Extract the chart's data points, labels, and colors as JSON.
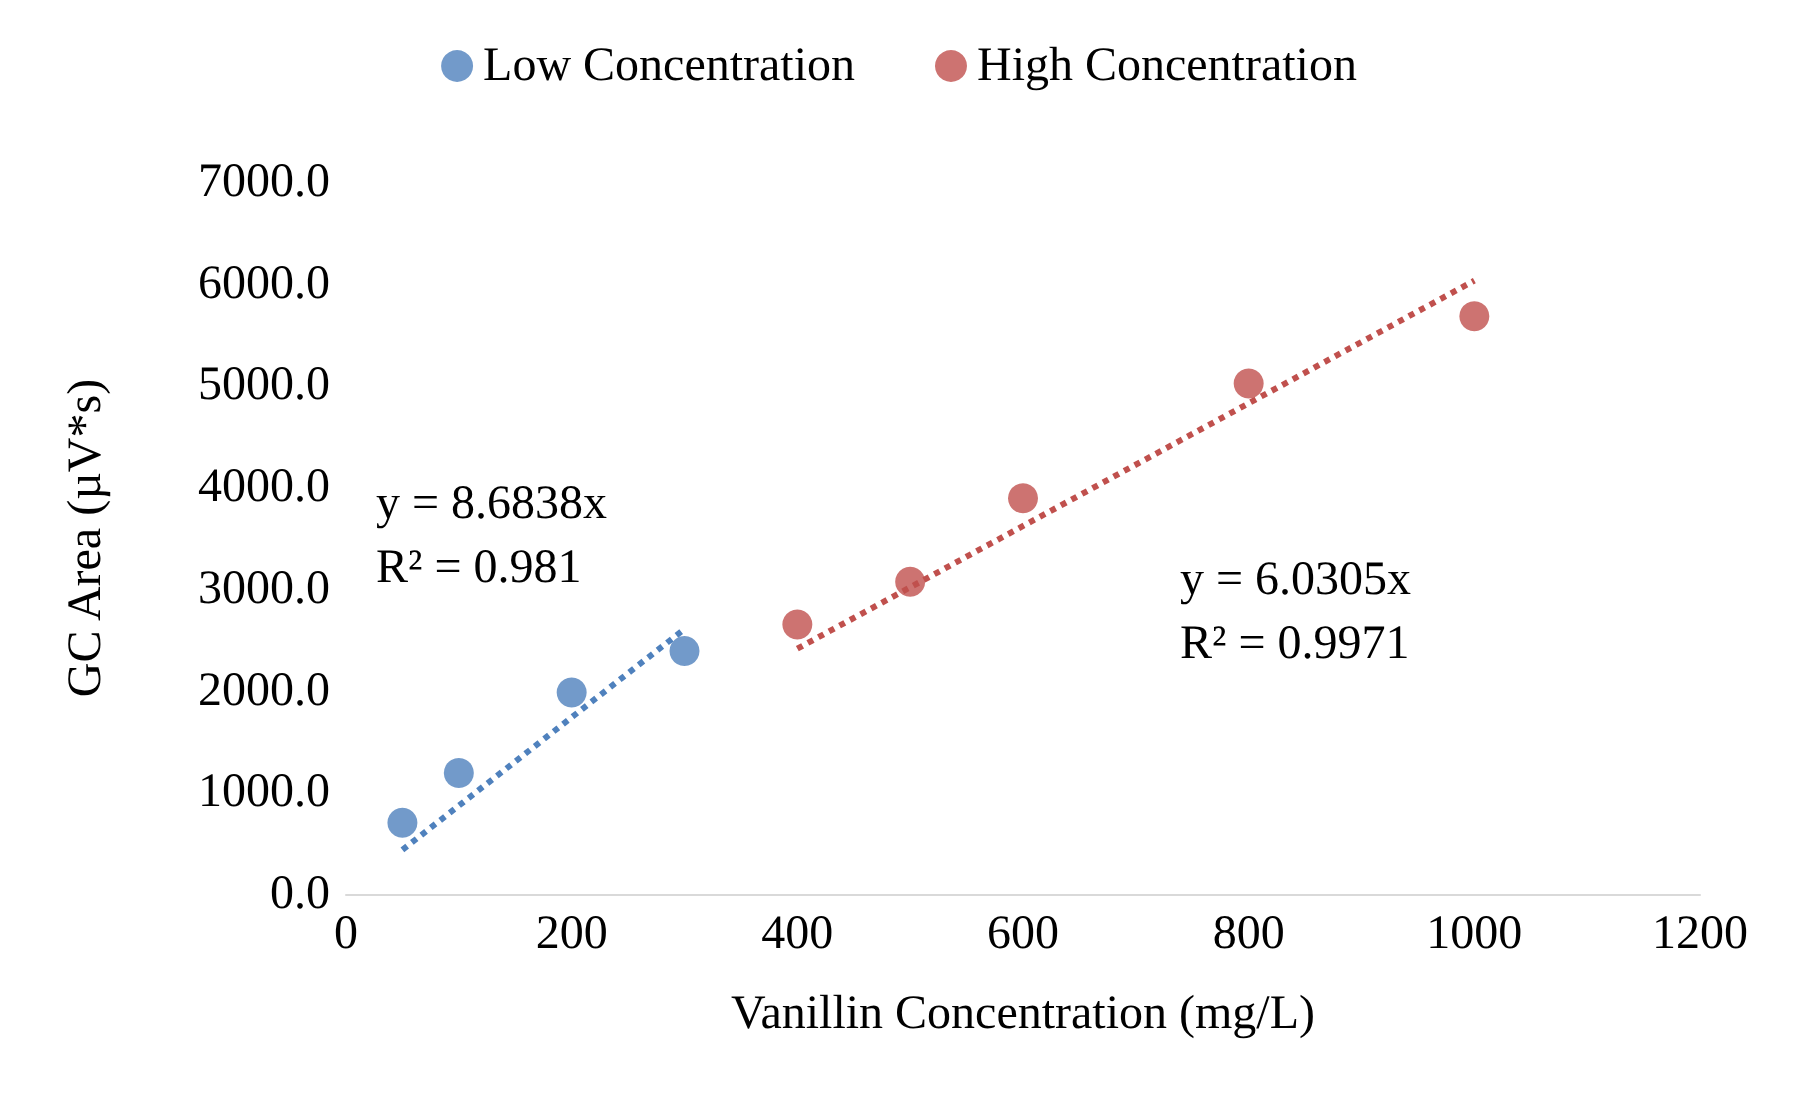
{
  "chart_data": {
    "type": "scatter",
    "xlabel": "Vanillin Concentration (mg/L)",
    "ylabel": "GC Area (µV*s)",
    "xlim": [
      0,
      1200
    ],
    "xticks": [
      0,
      200,
      400,
      600,
      800,
      1000,
      1200
    ],
    "ylim": [
      0,
      7000
    ],
    "yticks": [
      {
        "value": 0,
        "label": "0.0"
      },
      {
        "value": 1000,
        "label": "1000.0"
      },
      {
        "value": 2000,
        "label": "2000.0"
      },
      {
        "value": 3000,
        "label": "3000.0"
      },
      {
        "value": 4000,
        "label": "4000.0"
      },
      {
        "value": 5000,
        "label": "5000.0"
      },
      {
        "value": 6000,
        "label": "6000.0"
      },
      {
        "value": 7000,
        "label": "7000.0"
      }
    ],
    "grid": false,
    "legend": "top",
    "marker": "circle",
    "series": [
      {
        "name": "Low Concentration",
        "color": "#4f81bd",
        "x": [
          50,
          100,
          200,
          300
        ],
        "values": [
          700,
          1190,
          1980,
          2390
        ]
      },
      {
        "name": "High Concentration",
        "color": "#c0504d",
        "x": [
          400,
          500,
          600,
          800,
          1000
        ],
        "values": [
          2650,
          3070,
          3890,
          5020,
          5680
        ]
      },
      {
        "type": "line",
        "color": "#4f81bd",
        "line_style": "dotted",
        "marker": "none",
        "x": [
          50,
          300
        ],
        "values": [
          434,
          2605
        ]
      },
      {
        "type": "line",
        "color": "#c0504d",
        "line_style": "dotted",
        "marker": "none",
        "x": [
          400,
          1000
        ],
        "values": [
          2412,
          6030.5
        ]
      }
    ],
    "annotations": [
      "y = 8.6838x\nR² = 0.981",
      "y = 6.0305x\nR² = 0.9971"
    ]
  }
}
